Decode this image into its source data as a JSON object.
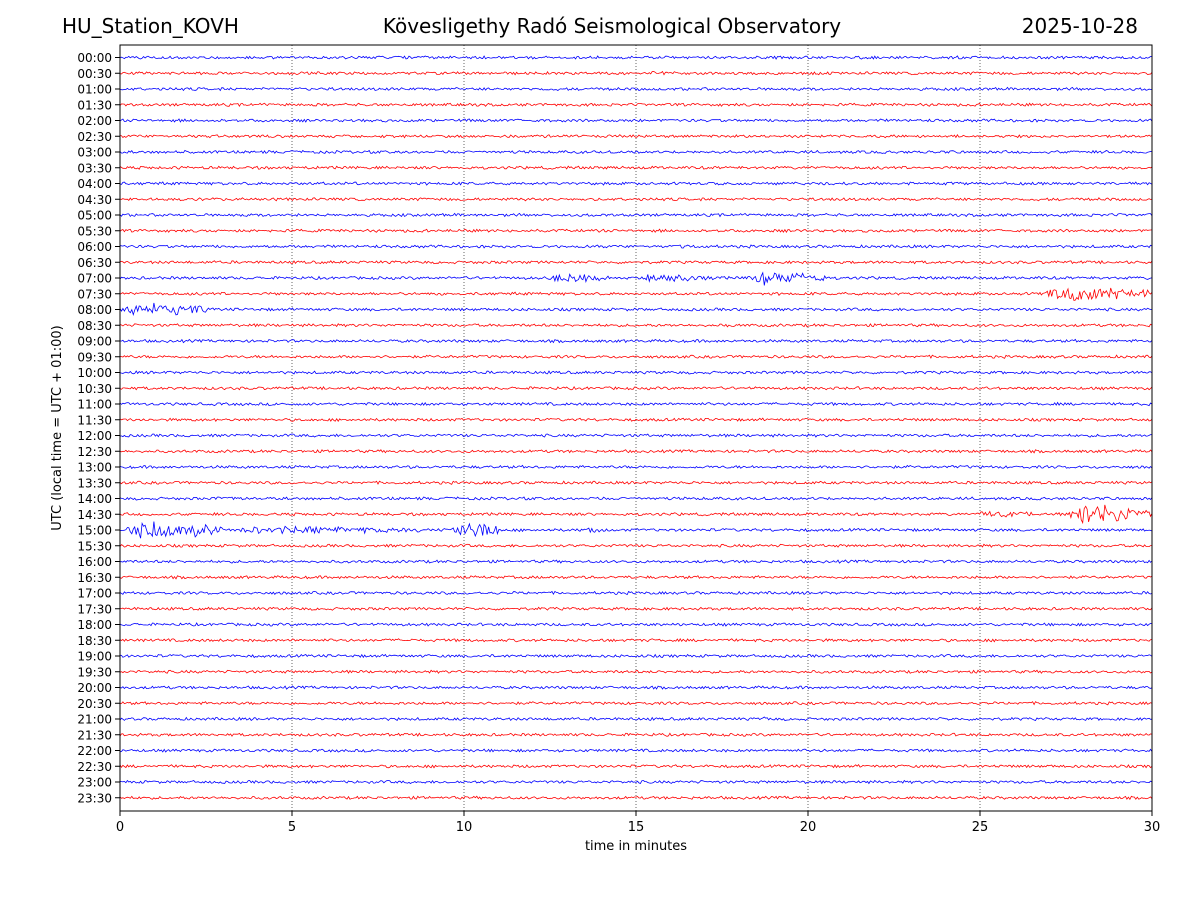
{
  "header": {
    "station": "HU_Station_KOVH",
    "observatory": "Kövesligethy Radó Seismological Observatory",
    "date": "2025-10-28"
  },
  "chart_data": {
    "type": "line",
    "title": "Kövesligethy Radó Seismological Observatory",
    "xlabel": "time in minutes",
    "ylabel": "UTC (local time = UTC + 01:00)",
    "xlim": [
      0,
      30
    ],
    "xticks": [
      "0",
      "5",
      "10",
      "15",
      "20",
      "25",
      "30"
    ],
    "grid_x": true,
    "colors": {
      "even_hour": "#0000ff",
      "half_hour": "#ff0000"
    },
    "rows": [
      "00:00",
      "00:30",
      "01:00",
      "01:30",
      "02:00",
      "02:30",
      "03:00",
      "03:30",
      "04:00",
      "04:30",
      "05:00",
      "05:30",
      "06:00",
      "06:30",
      "07:00",
      "07:30",
      "08:00",
      "08:30",
      "09:00",
      "09:30",
      "10:00",
      "10:30",
      "11:00",
      "11:30",
      "12:00",
      "12:30",
      "13:00",
      "13:30",
      "14:00",
      "14:30",
      "15:00",
      "15:30",
      "16:00",
      "16:30",
      "17:00",
      "17:30",
      "18:00",
      "18:30",
      "19:00",
      "19:30",
      "20:00",
      "20:30",
      "21:00",
      "21:30",
      "22:00",
      "22:30",
      "23:00",
      "23:30"
    ],
    "events": [
      {
        "row": "00:30",
        "start": 15.3,
        "end": 16.6,
        "amplitude": 3
      },
      {
        "row": "06:00",
        "start": 16.0,
        "end": 16.8,
        "amplitude": 3
      },
      {
        "row": "07:00",
        "start": 12.4,
        "end": 14.2,
        "amplitude": 6
      },
      {
        "row": "07:00",
        "start": 15.0,
        "end": 17.5,
        "amplitude": 5
      },
      {
        "row": "07:00",
        "start": 18.2,
        "end": 20.5,
        "amplitude": 9
      },
      {
        "row": "07:30",
        "start": 26.7,
        "end": 30.0,
        "amplitude": 10
      },
      {
        "row": "08:00",
        "start": 0.0,
        "end": 2.5,
        "amplitude": 9
      },
      {
        "row": "08:30",
        "start": 17.6,
        "end": 18.2,
        "amplitude": 3
      },
      {
        "row": "14:00",
        "start": 2.6,
        "end": 3.4,
        "amplitude": 3
      },
      {
        "row": "14:30",
        "start": 24.6,
        "end": 27.5,
        "amplitude": 4
      },
      {
        "row": "14:30",
        "start": 27.5,
        "end": 30.0,
        "amplitude": 15
      },
      {
        "row": "15:00",
        "start": 0.0,
        "end": 3.0,
        "amplitude": 12
      },
      {
        "row": "15:00",
        "start": 3.0,
        "end": 9.5,
        "amplitude": 5
      },
      {
        "row": "15:00",
        "start": 9.6,
        "end": 11.0,
        "amplitude": 12
      },
      {
        "row": "15:00",
        "start": 13.5,
        "end": 14.0,
        "amplitude": 6
      },
      {
        "row": "21:00",
        "start": 18.6,
        "end": 19.0,
        "amplitude": 3
      }
    ]
  }
}
